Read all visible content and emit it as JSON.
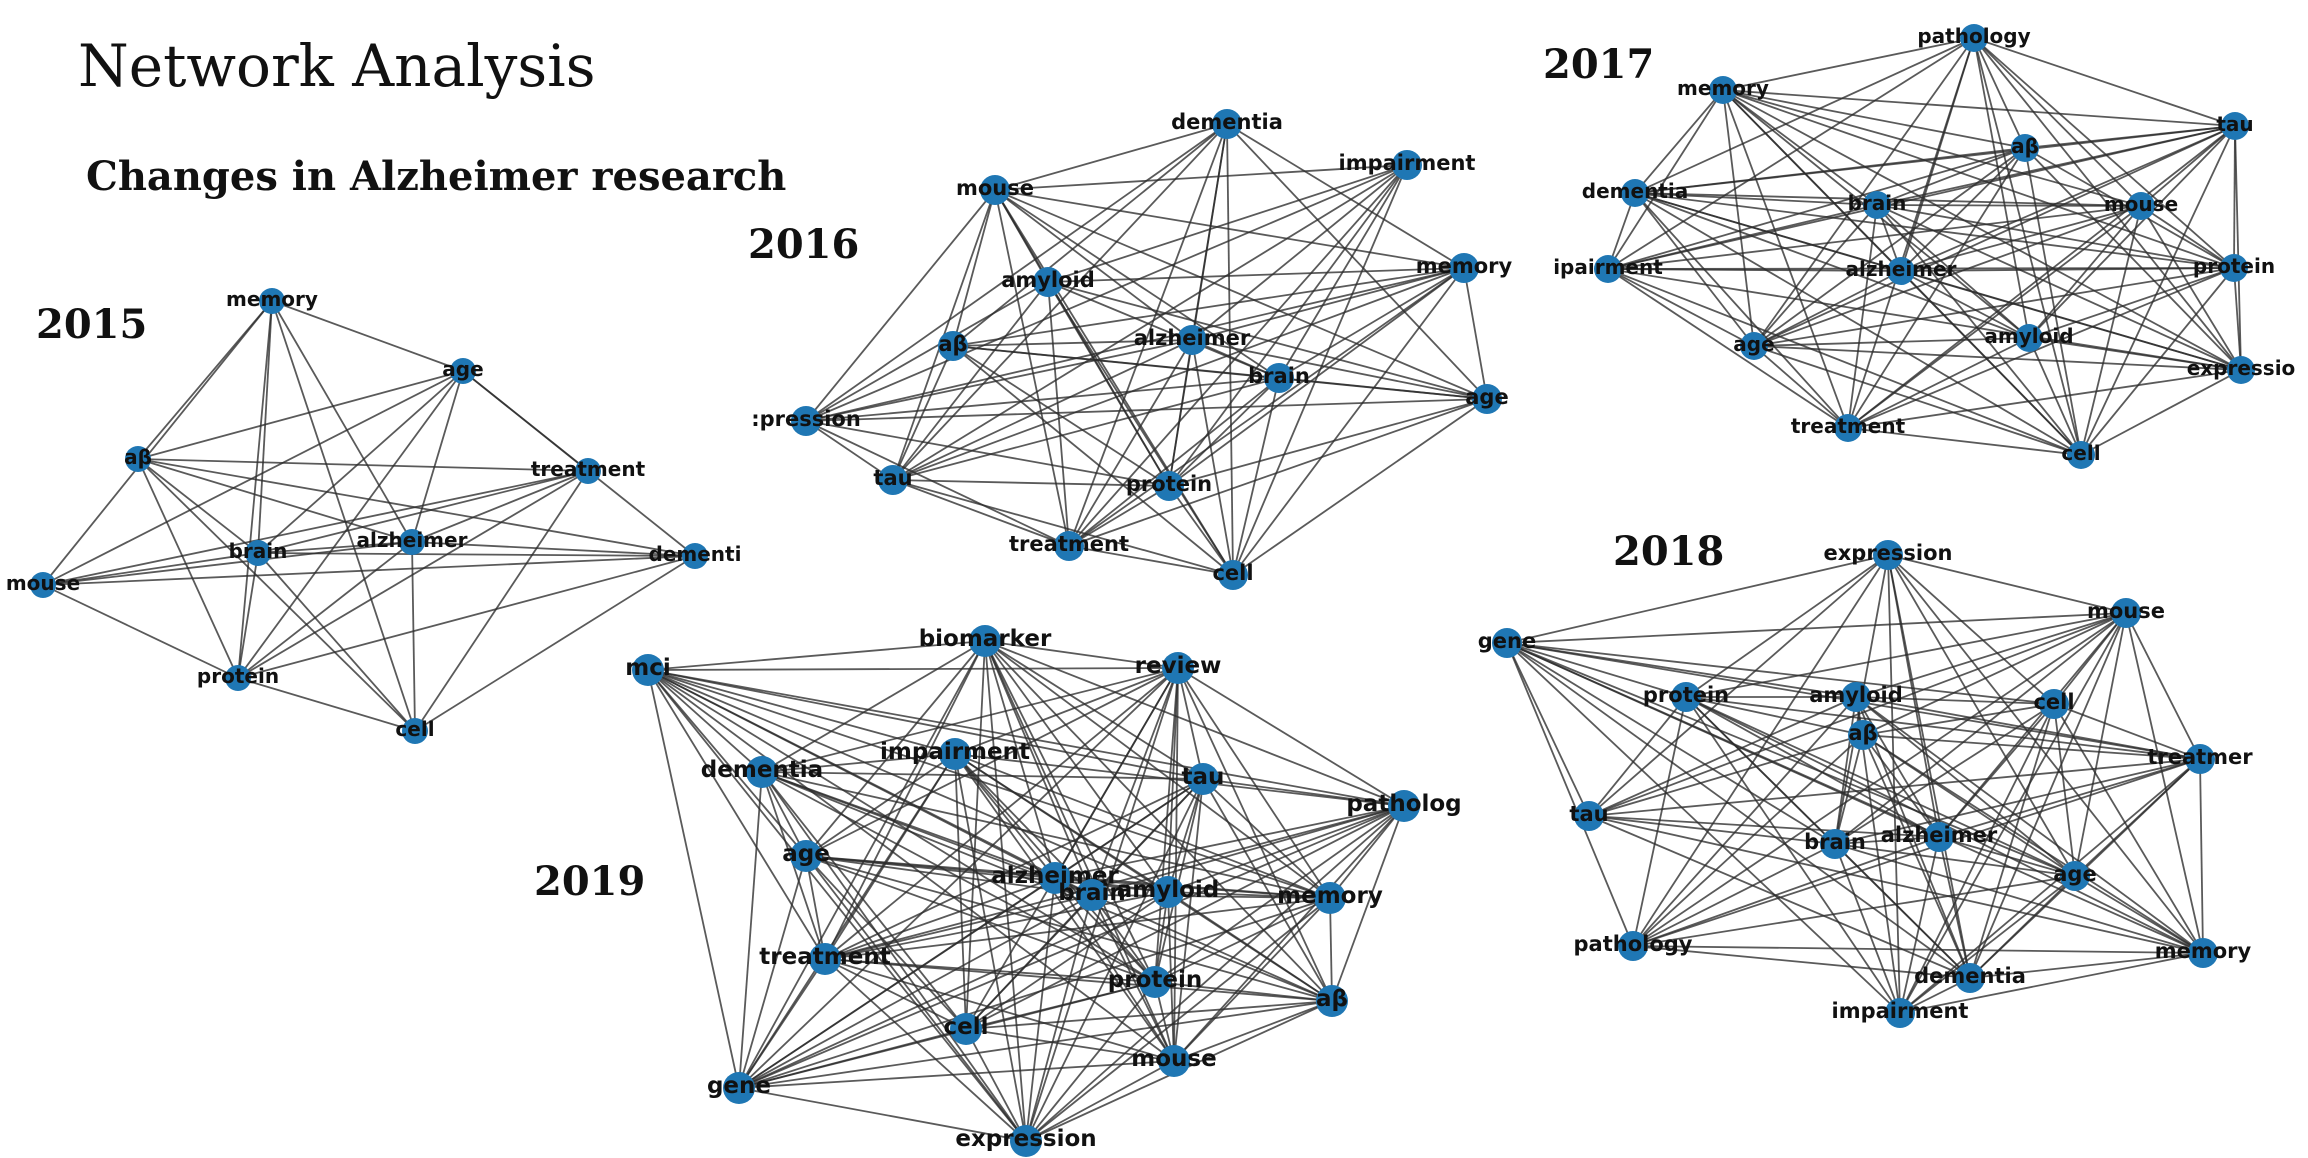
{
  "header": {
    "title": "Network Analysis",
    "subtitle": "Changes in Alzheimer research"
  },
  "node_color": "#1f77b4",
  "edge_color": "#2b2b2b",
  "networks": [
    {
      "year": "2015",
      "nodes": [
        "memory",
        "age",
        "aβ",
        "treatment",
        "brain",
        "alzheimer",
        "mouse",
        "dementi",
        "protein",
        "cell"
      ],
      "edge_density": "complete"
    },
    {
      "year": "2016",
      "nodes": [
        "dementia",
        "impairment",
        "mouse",
        "memory",
        "amyloid",
        "aβ",
        "alzheimer",
        "brain",
        ":pression",
        "age",
        "tau",
        "protein",
        "treatment",
        "cell"
      ],
      "edge_density": "complete"
    },
    {
      "year": "2017",
      "nodes": [
        "pathology",
        "memory",
        "tau",
        "aβ",
        "dementia",
        "brain",
        "mouse",
        "ipairment",
        "alzheimer",
        "protein",
        "age",
        "amyloid",
        "expressio",
        "treatment",
        "cell"
      ],
      "edge_density": "complete"
    },
    {
      "year": "2018",
      "nodes": [
        "expression",
        "mouse",
        "gene",
        "protein",
        "amyloid",
        "cell",
        "aβ",
        "treatmer",
        "tau",
        "brain",
        "alzheimer",
        "age",
        "pathology",
        "memory",
        "dementia",
        "impairment"
      ],
      "edge_density": "complete"
    },
    {
      "year": "2019",
      "nodes": [
        "mci",
        "biomarker",
        "review",
        "impairment",
        "dementia",
        "tau",
        "patholog",
        "age",
        "alzheimer",
        "brain",
        "amyloid",
        "memory",
        "treatment",
        "protein",
        "aβ",
        "cell",
        "mouse",
        "gene",
        "expression"
      ],
      "edge_density": "complete"
    }
  ]
}
